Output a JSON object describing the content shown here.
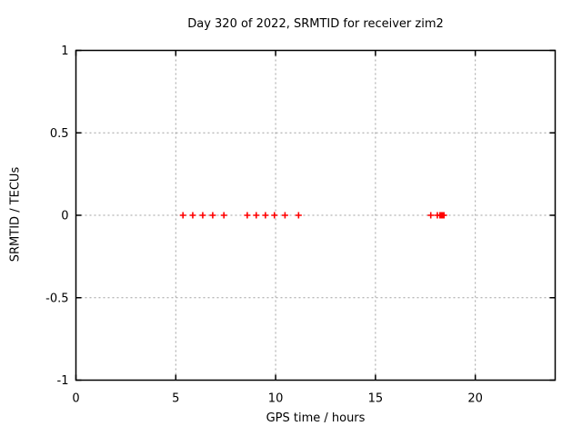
{
  "chart_data": {
    "type": "scatter",
    "title": "Day 320 of 2022, SRMTID for receiver zim2",
    "xlabel": "GPS time / hours",
    "ylabel": "SRMTID / TECUs",
    "xlim": [
      0,
      24
    ],
    "ylim": [
      -1,
      1
    ],
    "xticks": {
      "values": [
        0,
        5,
        10,
        15,
        20
      ],
      "labels": [
        "0",
        "5",
        "10",
        "15",
        "20"
      ]
    },
    "yticks": {
      "values": [
        1,
        0.5,
        0,
        -0.5,
        -1
      ],
      "labels": [
        "1",
        "0.5",
        "0",
        "-0.5",
        "-1"
      ]
    },
    "grid": true,
    "grid_color": "#a0a0a0",
    "border_color": "#000000",
    "legend": "none",
    "series": [
      {
        "name": "SRMTID",
        "marker": "plus",
        "color": "#ff0000",
        "x": [
          5.36,
          5.85,
          6.35,
          6.85,
          7.41,
          8.58,
          9.03,
          9.49,
          9.94,
          10.47,
          11.15,
          17.77,
          18.1,
          18.23,
          18.3,
          18.36,
          18.43
        ],
        "y": [
          0,
          0,
          0,
          0,
          0,
          0,
          0,
          0,
          0,
          0,
          0,
          0,
          0,
          0,
          0,
          0,
          0
        ]
      }
    ]
  }
}
